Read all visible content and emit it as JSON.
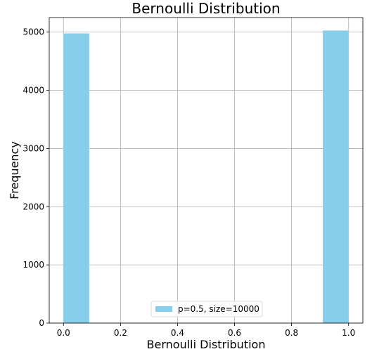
{
  "chart_data": {
    "type": "bar",
    "title": "Bernoulli Distribution",
    "xlabel": "Bernoulli Distribution",
    "ylabel": "Frequency",
    "xlim": [
      -0.05,
      1.05
    ],
    "ylim": [
      0,
      5250
    ],
    "xticks": [
      0.0,
      0.2,
      0.4,
      0.6,
      0.8,
      1.0
    ],
    "xtick_labels": [
      "0.0",
      "0.2",
      "0.4",
      "0.6",
      "0.8",
      "1.0"
    ],
    "yticks": [
      0,
      1000,
      2000,
      3000,
      4000,
      5000
    ],
    "ytick_labels": [
      "0",
      "1000",
      "2000",
      "3000",
      "4000",
      "5000"
    ],
    "grid": true,
    "legend_position": "lower center",
    "series": [
      {
        "name": "p=0.5, size=10000",
        "color": "#87ceeb",
        "bins": [
          {
            "x0": 0.0,
            "x1": 0.09,
            "value": 4975
          },
          {
            "x0": 0.91,
            "x1": 1.0,
            "value": 5025
          }
        ]
      }
    ]
  }
}
